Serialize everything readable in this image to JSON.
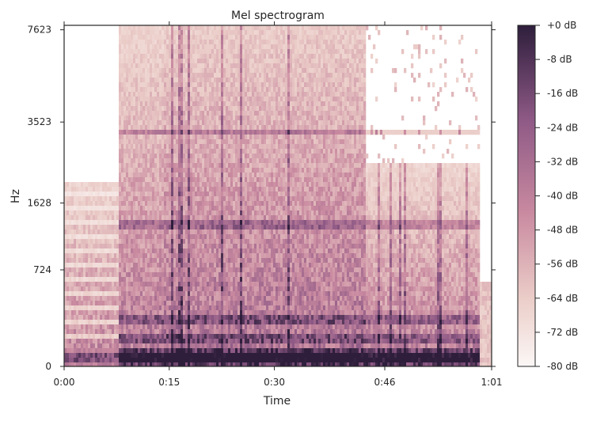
{
  "chart_data": {
    "type": "heatmap",
    "title": "Mel spectrogram",
    "xlabel": "Time",
    "ylabel": "Hz",
    "x_tick_labels": [
      "0:00",
      "0:15",
      "0:30",
      "0:46",
      "1:01"
    ],
    "x_range_seconds": [
      0,
      61
    ],
    "y_tick_labels": [
      "0",
      "724",
      "1628",
      "3523",
      "7623"
    ],
    "y_scale": "mel",
    "colorbar": {
      "labels": [
        "+0 dB",
        "-8 dB",
        "-16 dB",
        "-24 dB",
        "-32 dB",
        "-40 dB",
        "-48 dB",
        "-56 dB",
        "-64 dB",
        "-72 dB",
        "-80 dB"
      ],
      "range_db": [
        -80,
        0
      ],
      "colors": [
        "#fbf7f6",
        "#ebcdc8",
        "#c17f94",
        "#8f5a86",
        "#2e1e3c"
      ]
    },
    "segments_seconds": [
      {
        "start": 0,
        "end": 7.5,
        "level": "sparse harmonics"
      },
      {
        "start": 7.5,
        "end": 14,
        "level": "dense broadband"
      },
      {
        "start": 14,
        "end": 43,
        "level": "dense broadband with strong bands"
      },
      {
        "start": 43,
        "end": 59,
        "level": "mid-range energy"
      }
    ],
    "strong_bands_hz": [
      60,
      180,
      300,
      1300,
      3300
    ],
    "grid": false,
    "legend": "colorbar-right"
  }
}
